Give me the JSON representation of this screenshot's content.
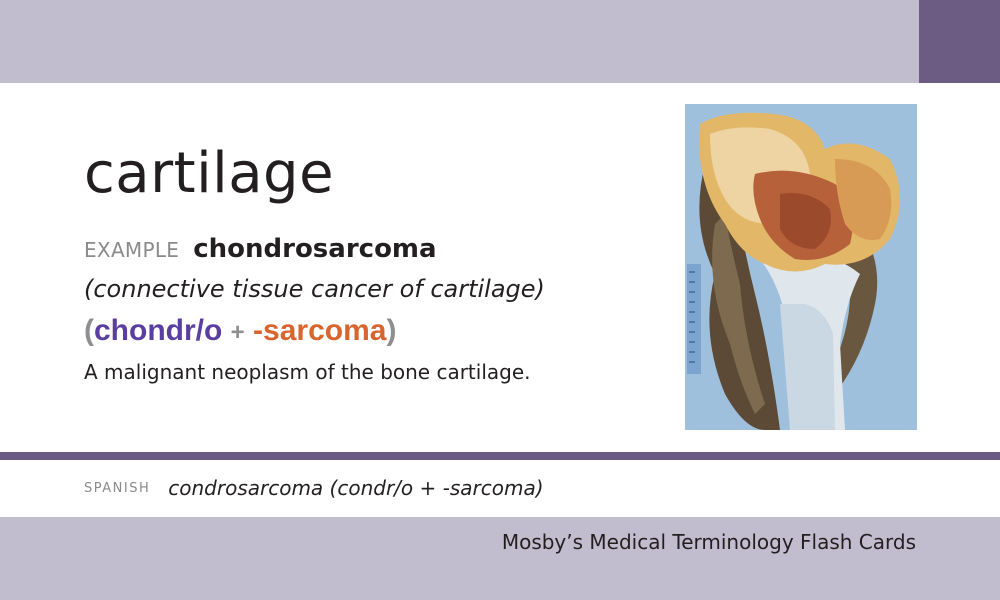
{
  "card": {
    "term": "cartilage",
    "example_label": "EXAMPLE",
    "example_word": "chondrosarcoma",
    "definition_italic": "(connective tissue cancer of cartilage)",
    "breakdown": {
      "open_paren": "(",
      "root": "chondr/o",
      "plus": "+",
      "suffix": "-sarcoma",
      "close_paren": ")"
    },
    "meaning": "A malignant neoplasm of the bone cartilage."
  },
  "spanish": {
    "label": "SPANISH",
    "text": "condrosarcoma (condr/o + -sarcoma)"
  },
  "footer": {
    "title": "Mosby’s Medical Terminology Flash Cards"
  },
  "colors": {
    "band": "#c2bccf",
    "accent": "#6c5b82",
    "root": "#5b3fa0",
    "suffix": "#d8652e"
  },
  "image": {
    "description_icon": "bone-specimen-photo"
  }
}
